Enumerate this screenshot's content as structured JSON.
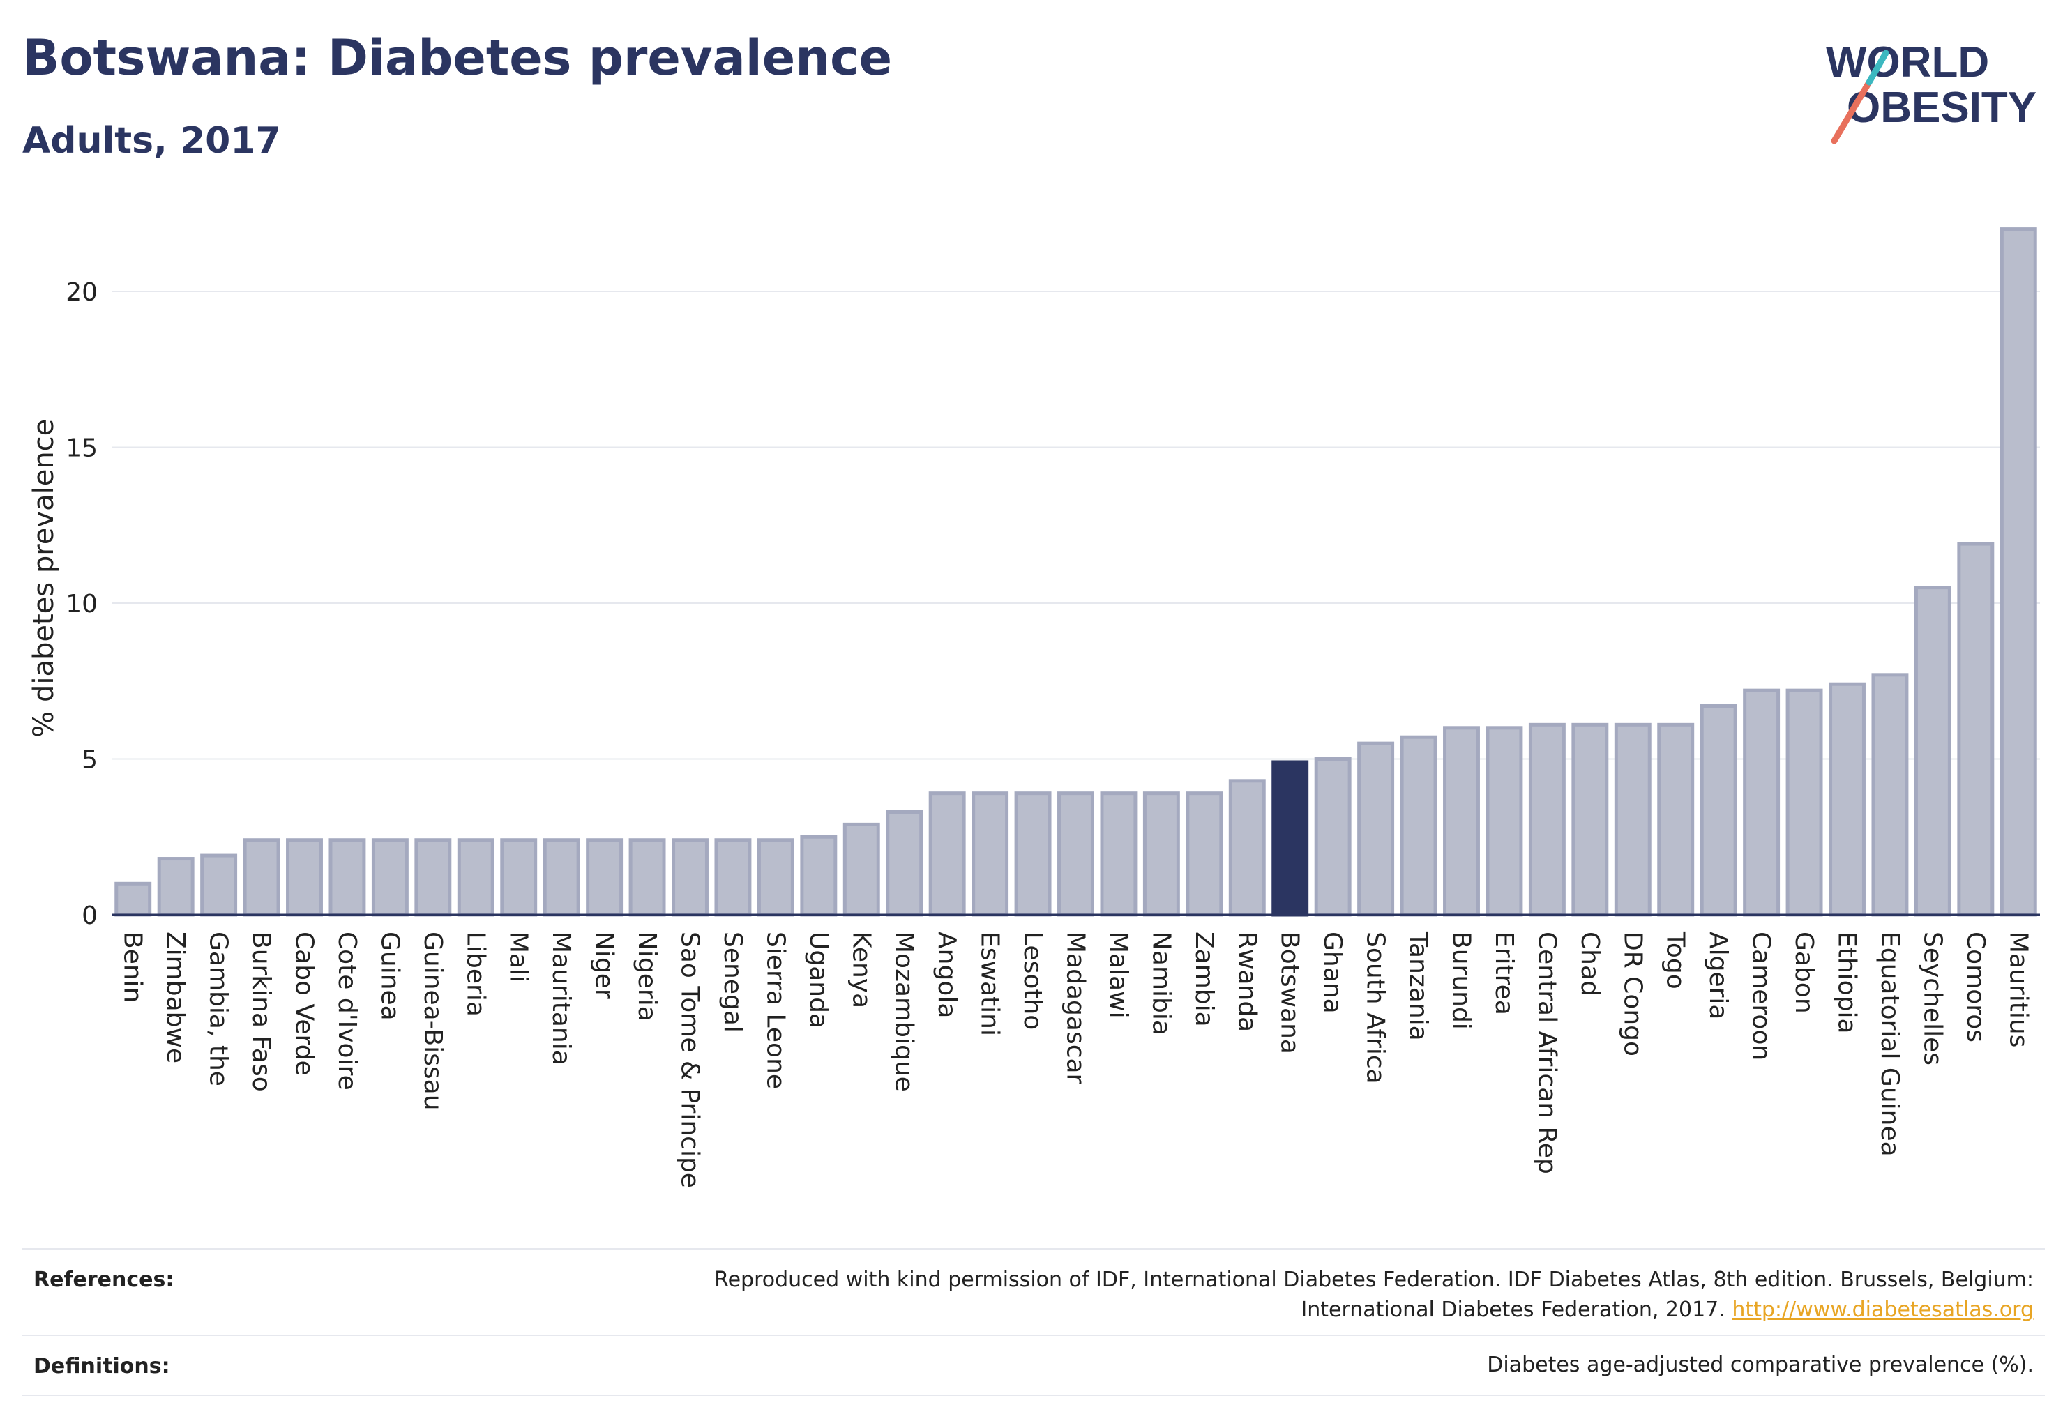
{
  "header": {
    "title": "Botswana: Diabetes prevalence",
    "subtitle": "Adults, 2017"
  },
  "logo": {
    "line1": "WORLD",
    "line2": "OBESITY"
  },
  "references": {
    "label": "References:",
    "text_line1": "Reproduced with kind permission of IDF, International Diabetes Federation. IDF Diabetes Atlas, 8th edition. Brussels, Belgium:",
    "text_line2": "International Diabetes Federation, 2017.",
    "link": "http://www.diabetesatlas.org"
  },
  "definitions": {
    "label": "Definitions:",
    "text": "Diabetes age-adjusted comparative prevalence (%)."
  },
  "colors": {
    "bar": "#b9bdcc",
    "bar_stroke": "#a4a9bf",
    "highlight": "#2b3561",
    "grid": "#e6e8ee",
    "axis": "#2b3561",
    "logo_red": "#e8705c",
    "logo_teal": "#3cb8c0"
  },
  "chart_data": {
    "type": "bar",
    "title": "Botswana: Diabetes prevalence",
    "subtitle": "Adults, 2017",
    "ylabel": "% diabetes prevalence",
    "xlabel": "",
    "ylim": [
      0,
      22.5
    ],
    "yticks": [
      0,
      5,
      10,
      15,
      20
    ],
    "grid": true,
    "highlight": "Botswana",
    "categories": [
      "Benin",
      "Zimbabwe",
      "Gambia, the",
      "Burkina Faso",
      "Cabo Verde",
      "Cote d'Ivoire",
      "Guinea",
      "Guinea-Bissau",
      "Liberia",
      "Mali",
      "Mauritania",
      "Niger",
      "Nigeria",
      "Sao Tome & Principe",
      "Senegal",
      "Sierra Leone",
      "Uganda",
      "Kenya",
      "Mozambique",
      "Angola",
      "Eswatini",
      "Lesotho",
      "Madagascar",
      "Malawi",
      "Namibia",
      "Zambia",
      "Rwanda",
      "Botswana",
      "Ghana",
      "South Africa",
      "Tanzania",
      "Burundi",
      "Eritrea",
      "Central African Rep",
      "Chad",
      "DR Congo",
      "Togo",
      "Algeria",
      "Cameroon",
      "Gabon",
      "Ethiopia",
      "Equatorial Guinea",
      "Seychelles",
      "Comoros",
      "Mauritius"
    ],
    "values": [
      1.0,
      1.8,
      1.9,
      2.4,
      2.4,
      2.4,
      2.4,
      2.4,
      2.4,
      2.4,
      2.4,
      2.4,
      2.4,
      2.4,
      2.4,
      2.4,
      2.5,
      2.9,
      3.3,
      3.9,
      3.9,
      3.9,
      3.9,
      3.9,
      3.9,
      3.9,
      4.3,
      4.9,
      5.0,
      5.5,
      5.7,
      6.0,
      6.0,
      6.1,
      6.1,
      6.1,
      6.1,
      6.7,
      7.2,
      7.2,
      7.4,
      7.7,
      10.5,
      11.9,
      22.0
    ]
  }
}
